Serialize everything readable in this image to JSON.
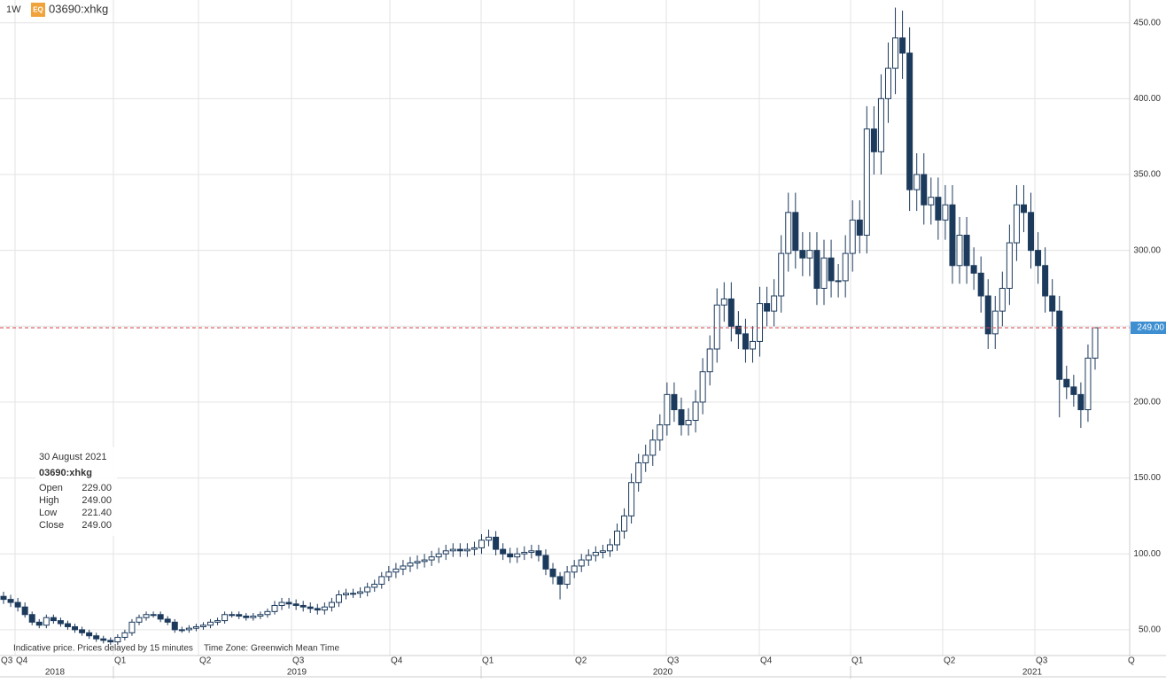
{
  "chart_data": {
    "type": "candlestick",
    "interval": "1W",
    "badge": "EQ",
    "symbol": "03690:xhkg",
    "up_color": "#ffffff",
    "down_color": "#1c3a5c",
    "outline_color": "#1c3a5c",
    "ylim": [
      33,
      465
    ],
    "yticks": [
      {
        "value": 50,
        "label": "50.00"
      },
      {
        "value": 100,
        "label": "100.00"
      },
      {
        "value": 150,
        "label": "150.00"
      },
      {
        "value": 200,
        "label": "200.00"
      },
      {
        "value": 250,
        "label": "250.00"
      },
      {
        "value": 300,
        "label": "300.00"
      },
      {
        "value": 350,
        "label": "350.00"
      },
      {
        "value": 400,
        "label": "400.00"
      },
      {
        "value": 450,
        "label": "450.00"
      }
    ],
    "quarter_labels": [
      "Q3",
      "Q4",
      "Q1",
      "Q2",
      "Q3",
      "Q4",
      "Q1",
      "Q2",
      "Q3",
      "Q4",
      "Q1",
      "Q2",
      "Q3",
      "Q"
    ],
    "year_labels": [
      "2018",
      "2019",
      "2020",
      "2021"
    ],
    "grid": true,
    "last_price": {
      "value": 249,
      "label": "249.00",
      "line_color": "#d9434b",
      "label_color": "#3d8fd1"
    },
    "tooltip": {
      "date": "30 August 2021",
      "symbol": "03690:xhkg",
      "rows": [
        {
          "label": "Open",
          "value": "229.00"
        },
        {
          "label": "High",
          "value": "249.00"
        },
        {
          "label": "Low",
          "value": "221.40"
        },
        {
          "label": "Close",
          "value": "249.00"
        }
      ]
    },
    "footnotes": [
      "Indicative price. Prices delayed by 15 minutes",
      "Time Zone: Greenwich Mean Time"
    ],
    "open": [
      72,
      70,
      68,
      65,
      60,
      55,
      53,
      58,
      56,
      54,
      52,
      50,
      48,
      46,
      44,
      43,
      42,
      45,
      48,
      55,
      58,
      60,
      60,
      57,
      55,
      50,
      50,
      51,
      52,
      53,
      55,
      56,
      60,
      60,
      59,
      58,
      59,
      60,
      62,
      66,
      68,
      67,
      66,
      65,
      64,
      63,
      65,
      68,
      73,
      74,
      74,
      75,
      78,
      80,
      85,
      88,
      90,
      92,
      94,
      95,
      96,
      98,
      100,
      102,
      103,
      102,
      103,
      104,
      109,
      111,
      103,
      100,
      98,
      100,
      101,
      102,
      99,
      90,
      85,
      80,
      88,
      92,
      96,
      99,
      101,
      102,
      106,
      115,
      125,
      147,
      160,
      165,
      175,
      185,
      205,
      195,
      185,
      188,
      200,
      220,
      235,
      264,
      268,
      250,
      245,
      235,
      240,
      265,
      260,
      270,
      298,
      325,
      300,
      295,
      300,
      275,
      295,
      280,
      280,
      298,
      320,
      310,
      380,
      365,
      400,
      420,
      440,
      430,
      340,
      350,
      330,
      335,
      320,
      330,
      290,
      310,
      290,
      285,
      270,
      245,
      260,
      275,
      305,
      330,
      325,
      300,
      290,
      270,
      260,
      215,
      210,
      205,
      195,
      229
    ],
    "high": [
      75,
      73,
      71,
      68,
      62,
      57,
      60,
      60,
      58,
      56,
      54,
      52,
      50,
      48,
      46,
      45,
      47,
      50,
      57,
      60,
      62,
      62,
      62,
      59,
      57,
      52,
      53,
      54,
      55,
      57,
      58,
      62,
      62,
      62,
      61,
      61,
      62,
      64,
      69,
      71,
      71,
      70,
      69,
      68,
      67,
      68,
      71,
      76,
      77,
      77,
      78,
      81,
      83,
      88,
      92,
      94,
      96,
      98,
      99,
      100,
      102,
      104,
      106,
      107,
      107,
      107,
      108,
      113,
      116,
      115,
      107,
      104,
      104,
      105,
      106,
      106,
      103,
      94,
      88,
      92,
      96,
      100,
      103,
      105,
      106,
      110,
      120,
      130,
      153,
      166,
      172,
      182,
      192,
      213,
      213,
      203,
      196,
      208,
      229,
      244,
      275,
      279,
      279,
      260,
      255,
      250,
      276,
      276,
      281,
      310,
      338,
      338,
      312,
      312,
      312,
      307,
      307,
      291,
      310,
      333,
      333,
      395,
      395,
      416,
      437,
      460,
      458,
      447,
      364,
      364,
      348,
      348,
      343,
      343,
      322,
      322,
      302,
      296,
      281,
      270,
      286,
      317,
      343,
      343,
      338,
      312,
      302,
      281,
      270,
      224,
      218,
      213,
      238,
      249
    ],
    "low": [
      67,
      65,
      62,
      58,
      53,
      51,
      51,
      54,
      52,
      50,
      48,
      46,
      44,
      42,
      41,
      40,
      40,
      43,
      46,
      53,
      56,
      58,
      55,
      53,
      48,
      48,
      48,
      49,
      50,
      51,
      53,
      54,
      58,
      57,
      56,
      56,
      57,
      58,
      60,
      63,
      64,
      63,
      62,
      61,
      60,
      60,
      62,
      65,
      70,
      71,
      71,
      72,
      75,
      77,
      82,
      84,
      86,
      88,
      90,
      91,
      92,
      94,
      96,
      98,
      98,
      98,
      99,
      100,
      105,
      99,
      96,
      94,
      94,
      96,
      97,
      95,
      86,
      80,
      70,
      77,
      84,
      88,
      92,
      95,
      97,
      98,
      102,
      110,
      120,
      141,
      154,
      158,
      168,
      178,
      187,
      178,
      178,
      180,
      192,
      211,
      226,
      253,
      240,
      235,
      226,
      226,
      230,
      250,
      250,
      259,
      286,
      288,
      283,
      283,
      264,
      264,
      269,
      269,
      269,
      286,
      298,
      298,
      350,
      350,
      384,
      403,
      413,
      326,
      326,
      317,
      317,
      307,
      307,
      278,
      278,
      278,
      274,
      259,
      235,
      235,
      250,
      264,
      293,
      312,
      288,
      278,
      259,
      250,
      190,
      202,
      197,
      183,
      187,
      221.4
    ],
    "close": [
      70,
      68,
      65,
      60,
      55,
      53,
      58,
      56,
      54,
      52,
      50,
      48,
      46,
      44,
      43,
      42,
      45,
      48,
      55,
      58,
      60,
      60,
      57,
      55,
      50,
      50,
      51,
      52,
      53,
      55,
      56,
      60,
      60,
      59,
      58,
      59,
      60,
      62,
      66,
      68,
      67,
      66,
      65,
      64,
      63,
      65,
      68,
      73,
      74,
      74,
      75,
      78,
      80,
      85,
      88,
      90,
      92,
      94,
      95,
      96,
      98,
      100,
      102,
      103,
      102,
      103,
      104,
      109,
      111,
      103,
      100,
      98,
      100,
      101,
      102,
      99,
      90,
      85,
      80,
      88,
      92,
      96,
      99,
      101,
      102,
      106,
      115,
      125,
      147,
      160,
      165,
      175,
      185,
      205,
      195,
      185,
      188,
      200,
      220,
      235,
      264,
      268,
      250,
      245,
      235,
      240,
      265,
      260,
      270,
      298,
      325,
      300,
      295,
      300,
      275,
      295,
      280,
      280,
      298,
      320,
      310,
      380,
      365,
      400,
      420,
      440,
      430,
      340,
      350,
      330,
      335,
      320,
      330,
      290,
      310,
      290,
      285,
      270,
      245,
      260,
      275,
      305,
      330,
      325,
      300,
      290,
      270,
      260,
      215,
      210,
      205,
      195,
      229,
      249
    ]
  }
}
